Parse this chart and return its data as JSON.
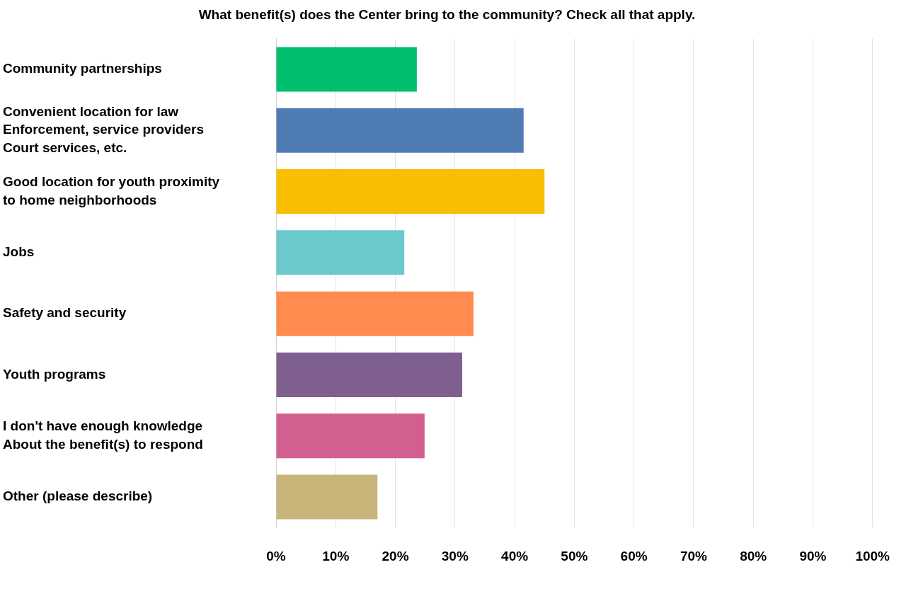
{
  "chart_data": {
    "type": "bar",
    "orientation": "horizontal",
    "title": "What benefit(s) does the Center bring to the community? Check all that apply.",
    "categories": [
      "Community partnerships",
      "Convenient location for law\nEnforcement, service providers\nCourt services, etc.",
      "Good location for youth proximity\nto home neighborhoods",
      "Jobs",
      "Safety and security",
      "Youth programs",
      "I don't have enough knowledge\nAbout the benefit(s) to respond",
      "Other (please describe)"
    ],
    "values": [
      23.6,
      41.5,
      45.0,
      21.5,
      33.1,
      31.2,
      24.9,
      17.0
    ],
    "colors": [
      "#00bf6f",
      "#507cb6",
      "#f9be00",
      "#6bc8cd",
      "#ff8b4f",
      "#7f5f8f",
      "#d25f90",
      "#c7b579"
    ],
    "xlim": [
      0,
      100
    ],
    "xticks": [
      {
        "value": 0,
        "label": "0%"
      },
      {
        "value": 10,
        "label": "10%"
      },
      {
        "value": 20,
        "label": "20%"
      },
      {
        "value": 30,
        "label": "30%"
      },
      {
        "value": 40,
        "label": "40%"
      },
      {
        "value": 50,
        "label": "50%"
      },
      {
        "value": 60,
        "label": "60%"
      },
      {
        "value": 70,
        "label": "70%"
      },
      {
        "value": 80,
        "label": "80%"
      },
      {
        "value": 90,
        "label": "90%"
      },
      {
        "value": 100,
        "label": "100%"
      }
    ],
    "grid": "x",
    "legend": false
  }
}
